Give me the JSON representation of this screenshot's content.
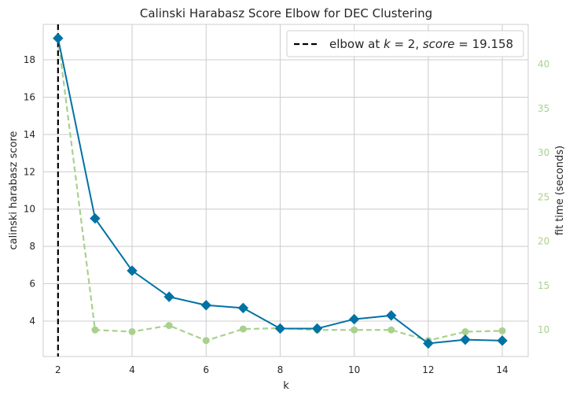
{
  "chart_data": {
    "type": "line",
    "title": "Calinski Harabasz Score Elbow for DEC Clustering",
    "xlabel": "k",
    "ylabel": "calinski harabasz score",
    "y2label": "fit time (seconds)",
    "x": [
      2,
      3,
      4,
      5,
      6,
      7,
      8,
      9,
      10,
      11,
      12,
      13,
      14
    ],
    "xticks": [
      "2",
      "4",
      "6",
      "8",
      "10",
      "12",
      "14"
    ],
    "yticks": [
      "4",
      "6",
      "8",
      "10",
      "12",
      "14",
      "16",
      "18"
    ],
    "y2ticks": [
      "10",
      "15",
      "20",
      "25",
      "30",
      "35",
      "40"
    ],
    "xlim": [
      1.6,
      14.7
    ],
    "ylim": [
      2.1,
      19.9
    ],
    "y2lim": [
      7.0,
      44.5
    ],
    "grid": true,
    "series": [
      {
        "axis": "left",
        "color": "#0072a3",
        "marker": "diamond",
        "values": [
          19.158,
          9.5,
          6.7,
          5.3,
          4.85,
          4.7,
          3.6,
          3.6,
          4.1,
          4.3,
          2.8,
          3.0,
          2.95
        ]
      },
      {
        "axis": "right",
        "color": "#a9d18e",
        "marker": "circle",
        "linestyle": "dashed",
        "values": [
          43.0,
          10.0,
          9.8,
          10.5,
          8.8,
          10.1,
          10.2,
          10.0,
          10.0,
          10.0,
          8.8,
          9.8,
          9.9
        ]
      }
    ],
    "elbow": {
      "k": 2,
      "score": 19.158
    },
    "legend": {
      "position": "top-right",
      "label_prefix": "elbow at ",
      "k_symbol": "k",
      "eq1": " = 2, ",
      "score_symbol": "score",
      "eq2": " = 19.158"
    }
  }
}
